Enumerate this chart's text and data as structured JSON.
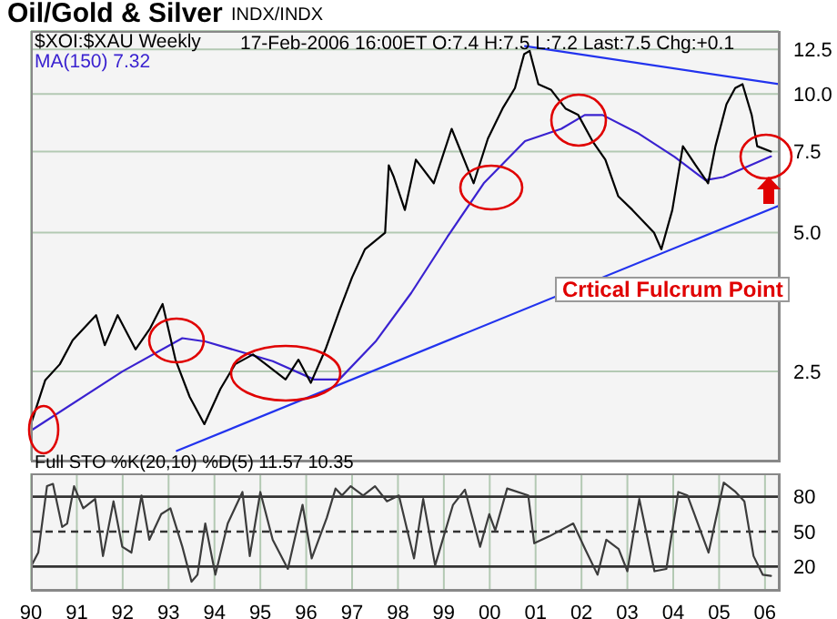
{
  "chart_data": [
    {
      "type": "line",
      "title": "Oil/Gold & Silver",
      "subtitle": "INDX/INDX",
      "log": "y",
      "grid": true,
      "legend": "top left",
      "marker": "none",
      "tick_labels": "y",
      "xlim": [
        1990,
        2006.3
      ],
      "xticks": [
        {
          "value": 1990,
          "label": null
        },
        {
          "value": 1991,
          "label": null
        },
        {
          "value": 1992,
          "label": null
        },
        {
          "value": 1993,
          "label": null
        },
        {
          "value": 1994,
          "label": null
        },
        {
          "value": 1995,
          "label": null
        },
        {
          "value": 1996,
          "label": null
        },
        {
          "value": 1997,
          "label": null
        },
        {
          "value": 1998,
          "label": null
        },
        {
          "value": 1999,
          "label": null
        },
        {
          "value": 2000,
          "label": null
        },
        {
          "value": 2001,
          "label": null
        },
        {
          "value": 2002,
          "label": null
        },
        {
          "value": 2003,
          "label": null
        },
        {
          "value": 2004,
          "label": null
        },
        {
          "value": 2005,
          "label": null
        },
        {
          "value": 2006,
          "label": null
        }
      ],
      "ylim": [
        1.6,
        13.7
      ],
      "yticks": [
        2.5,
        {
          "value": 5,
          "label": "5.0"
        },
        7.5,
        {
          "value": 10,
          "label": "10.0"
        },
        12.5
      ],
      "annotations": [
        "17-Feb-2006 16:00ET O:7.4 H:7.5 L:7.2 Last:7.5 Chg:+0.1",
        "Crtical Fulcrum Point"
      ],
      "series": [
        {
          "name": "$XOI:$XAU Weekly",
          "color": "#000000",
          "x": [
            1990.0,
            1990.31,
            1990.63,
            1990.91,
            1991.42,
            1991.61,
            1991.89,
            1992.28,
            1992.6,
            1992.87,
            1993.15,
            1993.46,
            1993.78,
            1994.13,
            1994.45,
            1994.84,
            1995.12,
            1995.55,
            1995.83,
            1996.1,
            1996.42,
            1996.73,
            1997.0,
            1997.28,
            1997.72,
            1997.8,
            1997.91,
            1998.15,
            1998.39,
            1998.78,
            1999.17,
            1999.65,
            1999.96,
            2000.28,
            2000.55,
            2000.75,
            2000.87,
            2001.06,
            2001.34,
            2001.65,
            2001.93,
            2002.24,
            2002.52,
            2002.8,
            2003.11,
            2003.58,
            2003.74,
            2003.98,
            2004.21,
            2004.49,
            2004.76,
            2004.92,
            2005.16,
            2005.35,
            2005.51,
            2005.71,
            2005.83,
            2006.13
          ],
          "values": [
            1.92,
            2.39,
            2.59,
            2.92,
            3.31,
            2.85,
            3.31,
            2.79,
            3.1,
            3.5,
            2.65,
            2.2,
            1.92,
            2.29,
            2.59,
            2.72,
            2.59,
            2.4,
            2.65,
            2.36,
            2.79,
            3.4,
            4.0,
            4.6,
            5.0,
            7.0,
            6.6,
            5.6,
            7.2,
            6.4,
            8.4,
            6.4,
            8.0,
            9.3,
            10.3,
            12.2,
            12.4,
            10.5,
            10.2,
            9.3,
            9.0,
            7.9,
            7.2,
            6.0,
            5.6,
            5.0,
            4.6,
            5.6,
            7.7,
            7.0,
            6.4,
            7.7,
            9.5,
            10.3,
            10.5,
            9.0,
            7.7,
            7.5
          ]
        },
        {
          "name": "MA(150) 7.32",
          "color": "#3a22d0",
          "x": [
            1990.04,
            1992.0,
            1993.3,
            1993.81,
            1995.27,
            1996.17,
            1996.72,
            1997.51,
            1998.29,
            1999.08,
            1999.87,
            2000.77,
            2001.56,
            2002.07,
            2002.46,
            2003.25,
            2004.03,
            2004.7,
            2005.09,
            2006.13
          ],
          "values": [
            1.87,
            2.5,
            2.95,
            2.9,
            2.63,
            2.4,
            2.4,
            2.9,
            3.7,
            4.9,
            6.4,
            7.9,
            8.4,
            9.0,
            9.0,
            8.2,
            7.3,
            6.5,
            6.6,
            7.32
          ]
        },
        {
          "type": "line",
          "color": "#2233ee",
          "x": [
            2000.77,
            2006.3
          ],
          "values": [
            12.7,
            10.5
          ]
        },
        {
          "type": "line",
          "color": "#2233ee",
          "x": [
            1993.18,
            2006.3
          ],
          "values": [
            1.68,
            5.72
          ]
        }
      ]
    },
    {
      "type": "line",
      "title": "Full STO %K(20,10) %D(5) 11.57 10.35",
      "grid": "x",
      "marker": "none",
      "xlim": [
        1990,
        2006.3
      ],
      "xticks": [
        {
          "value": 1990,
          "label": "90"
        },
        {
          "value": 1991,
          "label": "91"
        },
        {
          "value": 1992,
          "label": "92"
        },
        {
          "value": 1993,
          "label": "93"
        },
        {
          "value": 1994,
          "label": "94"
        },
        {
          "value": 1995,
          "label": "95"
        },
        {
          "value": 1996,
          "label": "96"
        },
        {
          "value": 1997,
          "label": "97"
        },
        {
          "value": 1998,
          "label": "98"
        },
        {
          "value": 1999,
          "label": "99"
        },
        {
          "value": 2000,
          "label": "00"
        },
        {
          "value": 2001,
          "label": "01"
        },
        {
          "value": 2002,
          "label": "02"
        },
        {
          "value": 2003,
          "label": "03"
        },
        {
          "value": 2004,
          "label": "04"
        },
        {
          "value": 2005,
          "label": "05"
        },
        {
          "value": 2006,
          "label": "06"
        }
      ],
      "ylim": [
        0,
        100
      ],
      "yticks": [
        20,
        50,
        80
      ],
      "ref_lines": [
        {
          "axis": "y",
          "value": 80,
          "color": "#333333",
          "line_style": "solid"
        },
        {
          "axis": "y",
          "value": 50,
          "color": "#333333",
          "line_style": "dashed"
        },
        {
          "axis": "y",
          "value": 20,
          "color": "#333333",
          "line_style": "solid"
        }
      ],
      "series": [
        {
          "color": "#3c3c3c",
          "x": [
            1990.0,
            1990.16,
            1990.35,
            1990.48,
            1990.68,
            1990.79,
            1990.94,
            1991.14,
            1991.4,
            1991.57,
            1991.8,
            1991.99,
            1992.19,
            1992.41,
            1992.58,
            1992.84,
            1993.04,
            1993.3,
            1993.5,
            1993.63,
            1993.8,
            1994.02,
            1994.29,
            1994.61,
            1994.77,
            1995.0,
            1995.27,
            1995.6,
            1995.92,
            1996.12,
            1996.45,
            1996.64,
            1996.78,
            1996.97,
            1997.24,
            1997.5,
            1997.76,
            1998.02,
            1998.35,
            1998.55,
            1998.81,
            1999.2,
            1999.46,
            1999.79,
            1999.99,
            2000.12,
            2000.38,
            2000.84,
            2000.97,
            2001.3,
            2001.82,
            2002.08,
            2002.35,
            2002.54,
            2002.81,
            2003.0,
            2003.26,
            2003.59,
            2003.85,
            2004.11,
            2004.31,
            2004.77,
            2005.1,
            2005.36,
            2005.55,
            2005.75,
            2005.95,
            2006.13
          ],
          "values": [
            20,
            32,
            89,
            91,
            54,
            57,
            89,
            70,
            78,
            29,
            76,
            37,
            32,
            81,
            43,
            65,
            70,
            37,
            7,
            13,
            57,
            13,
            57,
            84,
            29,
            84,
            43,
            18,
            73,
            27,
            62,
            87,
            81,
            89,
            81,
            89,
            76,
            81,
            27,
            78,
            21,
            73,
            86,
            37,
            65,
            51,
            87,
            81,
            40,
            46,
            57,
            35,
            13,
            43,
            35,
            16,
            78,
            16,
            18,
            84,
            81,
            32,
            92,
            84,
            76,
            29,
            13,
            12
          ]
        }
      ]
    }
  ]
}
